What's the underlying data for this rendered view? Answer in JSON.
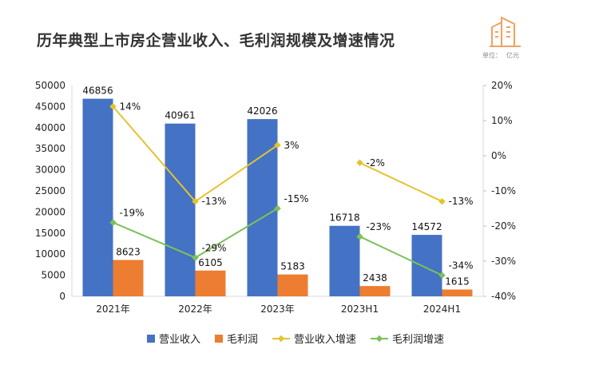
{
  "title": "历年典型上市房企营业收入、毛利润规模及增速情况",
  "unit_label": "单位：",
  "unit_value": "亿元",
  "colors": {
    "revenue": "#4472C4",
    "profit": "#ED7D31",
    "revenue_growth": "#E3C330",
    "profit_growth": "#7DC15A"
  },
  "chart_data": {
    "type": "bar",
    "categories": [
      "2021年",
      "2022年",
      "2023年",
      "2023H1",
      "2024H1"
    ],
    "series": [
      {
        "name": "营业收入",
        "type": "bar",
        "axis": "left",
        "values": [
          46856,
          40961,
          42026,
          16718,
          14572
        ],
        "labels": [
          "46856",
          "40961",
          "42026",
          "16718",
          "14572"
        ]
      },
      {
        "name": "毛利润",
        "type": "bar",
        "axis": "left",
        "values": [
          8623,
          6105,
          5183,
          2438,
          1615
        ],
        "labels": [
          "8623",
          "6105",
          "5183",
          "2438",
          "1615"
        ]
      },
      {
        "name": "营业收入增速",
        "type": "line",
        "axis": "right",
        "values": [
          14,
          -13,
          3,
          -2,
          -13
        ],
        "labels": [
          "14%",
          "-13%",
          "3%",
          "-2%",
          "-13%"
        ]
      },
      {
        "name": "毛利润增速",
        "type": "line",
        "axis": "right",
        "values": [
          -19,
          -29,
          -15,
          -23,
          -34
        ],
        "labels": [
          "-19%",
          "-29%",
          "-15%",
          "-23%",
          "-34%"
        ]
      }
    ],
    "line_segments": [
      [
        0,
        1,
        2
      ],
      [
        3,
        4
      ]
    ],
    "y_left": {
      "min": 0,
      "max": 50000,
      "ticks": [
        "0",
        "5000",
        "10000",
        "15000",
        "20000",
        "25000",
        "30000",
        "35000",
        "40000",
        "45000",
        "50000"
      ]
    },
    "y_right": {
      "min": -40,
      "max": 20,
      "ticks": [
        "-40%",
        "-30%",
        "-20%",
        "-10%",
        "0%",
        "10%",
        "20%"
      ]
    },
    "legend": [
      "营业收入",
      "毛利润",
      "营业收入增速",
      "毛利润增速"
    ],
    "legend_position": "bottom"
  }
}
